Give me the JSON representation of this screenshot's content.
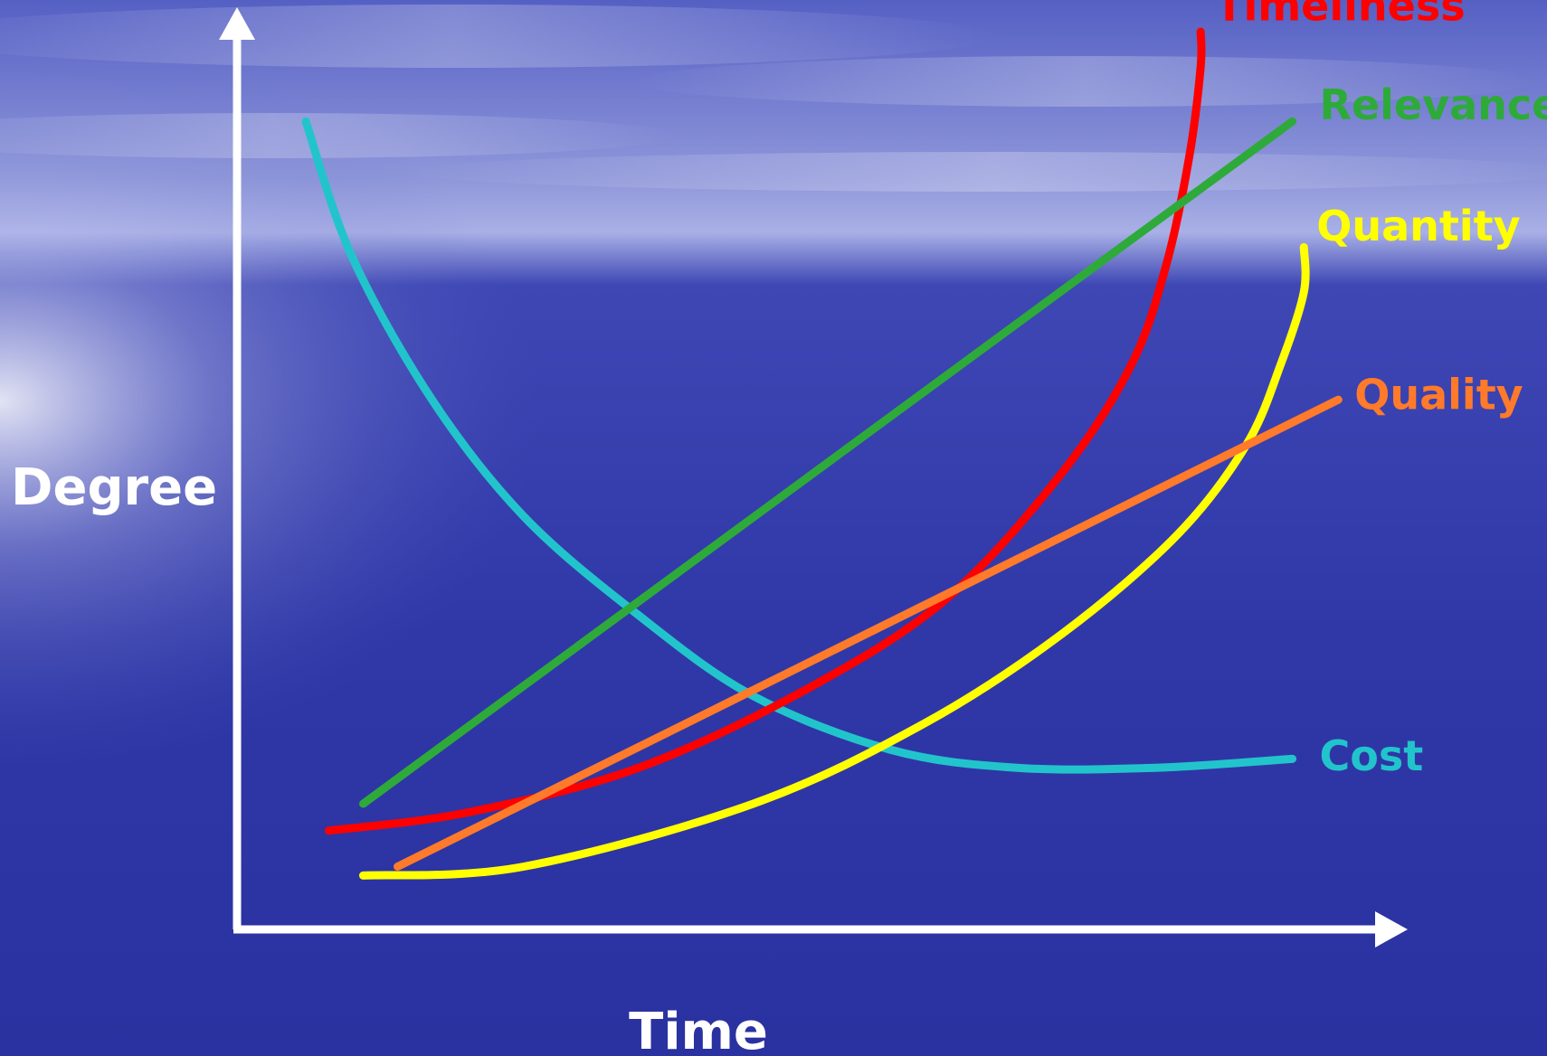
{
  "chart_data": {
    "type": "line",
    "xlabel": "Time",
    "ylabel": "Degree",
    "grid": false,
    "legend": "inline-right",
    "x_range": [
      0,
      100
    ],
    "y_range": [
      0,
      100
    ],
    "series": [
      {
        "name": "Timeliness",
        "color": "#FF0000",
        "x": [
          8,
          20,
          35,
          50,
          62,
          72,
          78,
          81,
          83,
          84,
          84
        ],
        "y": [
          11,
          13,
          18,
          27,
          37,
          51,
          63,
          74,
          86,
          96,
          100
        ]
      },
      {
        "name": "Relevance",
        "color": "#2EAA3A",
        "x": [
          11,
          92
        ],
        "y": [
          14,
          90
        ]
      },
      {
        "name": "Quantity",
        "color": "#FFFF00",
        "x": [
          11,
          25,
          45,
          60,
          72,
          82,
          88,
          91,
          93,
          93
        ],
        "y": [
          6,
          7,
          14,
          23,
          33,
          44,
          54,
          63,
          71,
          76
        ]
      },
      {
        "name": "Quality",
        "color": "#FF7A2A",
        "x": [
          14,
          96
        ],
        "y": [
          7,
          59
        ]
      },
      {
        "name": "Cost",
        "color": "#22C4CC",
        "x": [
          6,
          10,
          17,
          25,
          35,
          45,
          57,
          68,
          80,
          92
        ],
        "y": [
          90,
          75,
          59,
          46,
          35,
          26,
          20,
          18,
          18,
          19
        ]
      }
    ]
  }
}
